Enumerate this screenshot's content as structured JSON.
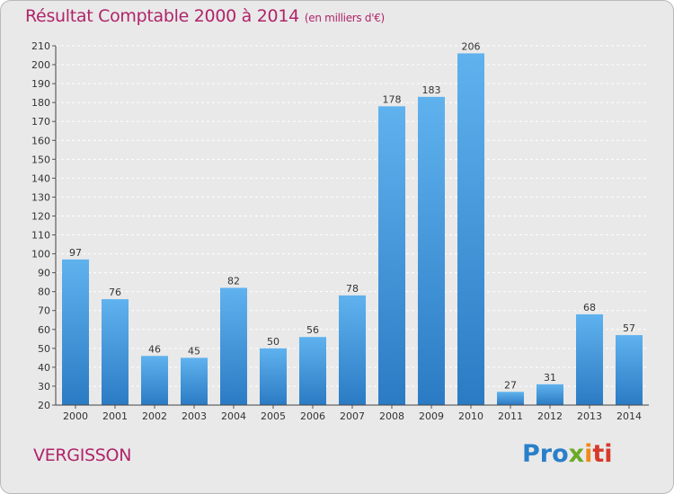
{
  "header": {
    "title": "Résultat Comptable 2000 à 2014",
    "subtitle": "(en milliers d'€)"
  },
  "footer": {
    "town": "VERGISSON",
    "logo": {
      "parts": [
        "Pro",
        "x",
        "i",
        "ti"
      ],
      "colors": [
        "#2a7fc9",
        "#6aaa27",
        "#f08a1a",
        "#d63a2b"
      ]
    }
  },
  "colors": {
    "bar_light": "#5fb2ee",
    "bar_dark": "#2b7bc4",
    "title": "#b0246a",
    "grid": "#ffffff",
    "background": "#e9e9e9"
  },
  "chart_data": {
    "type": "bar",
    "title": "Résultat Comptable 2000 à 2014",
    "subtitle": "(en milliers d'€)",
    "xlabel": "",
    "ylabel": "",
    "categories": [
      "2000",
      "2001",
      "2002",
      "2003",
      "2004",
      "2005",
      "2006",
      "2007",
      "2008",
      "2009",
      "2010",
      "2011",
      "2012",
      "2013",
      "2014"
    ],
    "values": [
      97,
      76,
      46,
      45,
      82,
      50,
      56,
      78,
      178,
      183,
      206,
      27,
      31,
      68,
      57
    ],
    "ylim": [
      20,
      210
    ],
    "yticks": [
      20,
      30,
      40,
      50,
      60,
      70,
      80,
      90,
      100,
      110,
      120,
      130,
      140,
      150,
      160,
      170,
      180,
      190,
      200,
      210
    ],
    "grid": true,
    "legend": "none"
  }
}
